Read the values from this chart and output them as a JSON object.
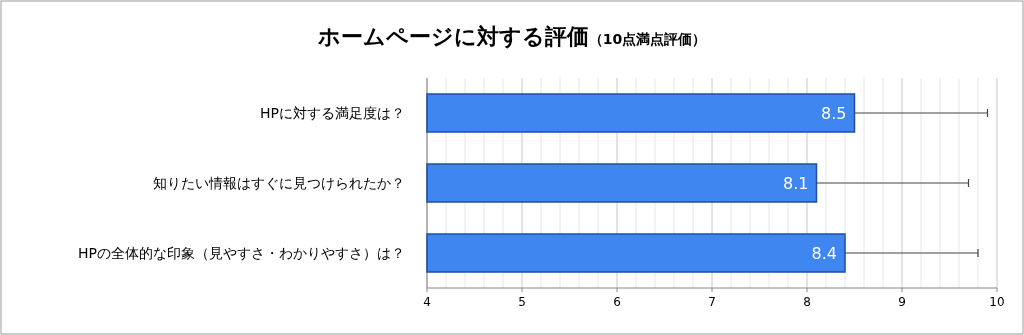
{
  "chart_data": {
    "type": "bar",
    "orientation": "horizontal",
    "title": "ホームページに対する評価",
    "subtitle": "（10点満点評価）",
    "categories": [
      "HPに対する満足度は？",
      "知りたい情報はすぐに見つけられたか？",
      "HPの全体的な印象（見やすさ・わかりやすさ）は？"
    ],
    "values": [
      8.5,
      8.1,
      8.4
    ],
    "color": "#3f86f0",
    "errors": [
      [
        8.5,
        9.9
      ],
      [
        8.1,
        9.7
      ],
      [
        8.4,
        9.8
      ]
    ],
    "xlim": [
      4,
      10
    ],
    "xticks": [
      4,
      5,
      6,
      7,
      8,
      9,
      10
    ],
    "grid": "x",
    "data_labels": true
  }
}
